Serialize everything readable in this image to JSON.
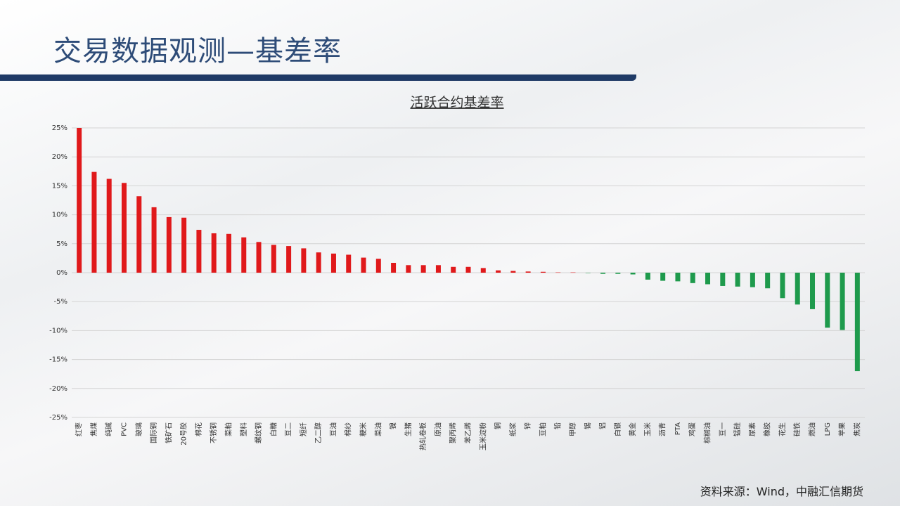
{
  "header": {
    "title": "交易数据观测—基差率"
  },
  "footer": {
    "source": "资料来源：Wind，中融汇信期货"
  },
  "chart_data": {
    "type": "bar",
    "title": "活跃合约基差率",
    "categories": [
      "红枣",
      "焦煤",
      "纯碱",
      "PVC",
      "玻璃",
      "国际铜",
      "铁矿石",
      "20号胶",
      "棉花",
      "不锈钢",
      "菜粕",
      "塑料",
      "螺纹钢",
      "白糖",
      "豆二",
      "短纤",
      "乙二醇",
      "豆油",
      "棉纱",
      "粳米",
      "菜油",
      "镍",
      "生猪",
      "热轧卷板",
      "原油",
      "聚丙烯",
      "苯乙烯",
      "玉米淀粉",
      "铜",
      "纸浆",
      "锌",
      "豆粕",
      "铅",
      "甲醇",
      "锡",
      "铝",
      "白银",
      "黄金",
      "玉米",
      "沥青",
      "PTA",
      "鸡蛋",
      "棕榈油",
      "豆一",
      "锰硅",
      "尿素",
      "橡胶",
      "花生",
      "硅铁",
      "燃油",
      "LPG",
      "苹果",
      "焦炭"
    ],
    "values": [
      25.0,
      17.4,
      16.2,
      15.5,
      13.2,
      11.3,
      9.6,
      9.5,
      7.4,
      6.8,
      6.7,
      6.1,
      5.3,
      4.8,
      4.6,
      4.2,
      3.5,
      3.3,
      3.1,
      2.6,
      2.4,
      1.7,
      1.3,
      1.3,
      1.3,
      1.0,
      1.0,
      0.8,
      0.4,
      0.3,
      0.2,
      0.15,
      0.05,
      0.05,
      -0.02,
      -0.2,
      -0.2,
      -0.3,
      -1.2,
      -1.4,
      -1.5,
      -1.8,
      -2.0,
      -2.3,
      -2.4,
      -2.5,
      -2.7,
      -4.4,
      -5.5,
      -6.3,
      -9.5,
      -9.9,
      -17.0
    ],
    "positive_color": "#e0191b",
    "negative_color": "#1e9a4c",
    "ylim": [
      -25,
      25
    ],
    "yticks": [
      {
        "value": -25,
        "label": "-25%"
      },
      {
        "value": -20,
        "label": "-20%"
      },
      {
        "value": -15,
        "label": "-15%"
      },
      {
        "value": -10,
        "label": "-10%"
      },
      {
        "value": -5,
        "label": "-5%"
      },
      {
        "value": 0,
        "label": "0%"
      },
      {
        "value": 5,
        "label": "5%"
      },
      {
        "value": 10,
        "label": "10%"
      },
      {
        "value": 15,
        "label": "15%"
      },
      {
        "value": 20,
        "label": "20%"
      },
      {
        "value": 25,
        "label": "25%"
      }
    ],
    "grid": true
  }
}
